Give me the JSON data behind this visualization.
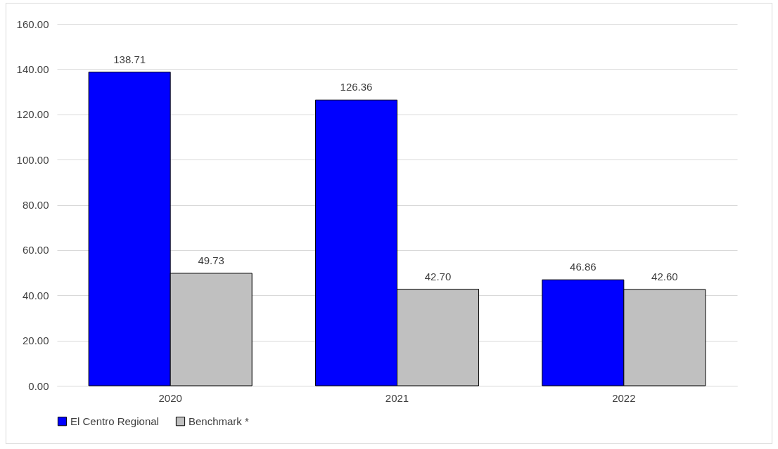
{
  "chart_data": {
    "type": "bar",
    "categories": [
      "2020",
      "2021",
      "2022"
    ],
    "series": [
      {
        "name": "El Centro Regional",
        "color": "#0000ff",
        "values": [
          138.71,
          126.36,
          46.86
        ],
        "value_labels": [
          "138.71",
          "126.36",
          "46.86"
        ]
      },
      {
        "name": "Benchmark *",
        "color": "#c0c0c0",
        "values": [
          49.73,
          42.7,
          42.6
        ],
        "value_labels": [
          "49.73",
          "42.70",
          "42.60"
        ]
      }
    ],
    "ylim": [
      0,
      160
    ],
    "yticks": [
      {
        "value": 0,
        "label": "0.00"
      },
      {
        "value": 20,
        "label": "20.00"
      },
      {
        "value": 40,
        "label": "40.00"
      },
      {
        "value": 60,
        "label": "60.00"
      },
      {
        "value": 80,
        "label": "80.00"
      },
      {
        "value": 100,
        "label": "100.00"
      },
      {
        "value": 120,
        "label": "120.00"
      },
      {
        "value": 140,
        "label": "140.00"
      },
      {
        "value": 160,
        "label": "160.00"
      }
    ],
    "grid": "y",
    "legend": "bottom"
  }
}
